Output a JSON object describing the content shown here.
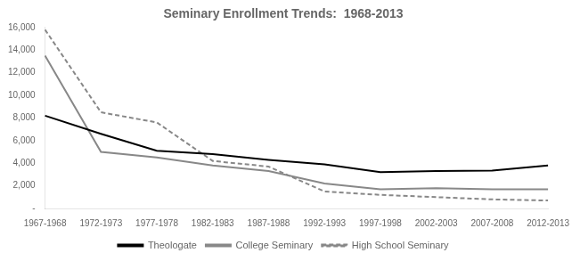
{
  "chart_data": {
    "type": "line",
    "title": "Seminary Enrollment Trends:  1968-2013",
    "categories": [
      "1967-1968",
      "1972-1973",
      "1977-1978",
      "1982-1983",
      "1987-1988",
      "1992-1993",
      "1997-1998",
      "2002-2003",
      "2007-2008",
      "2012-2013"
    ],
    "series": [
      {
        "name": "Theologate",
        "color": "#000000",
        "line_style": "solid",
        "values": [
          8200,
          6600,
          5100,
          4800,
          4300,
          3900,
          3200,
          3300,
          3350,
          3800
        ]
      },
      {
        "name": "College Seminary",
        "color": "#888888",
        "line_style": "solid",
        "values": [
          13500,
          5000,
          4500,
          3800,
          3300,
          2200,
          1700,
          1800,
          1700,
          1700
        ]
      },
      {
        "name": "High School Seminary",
        "color": "#888888",
        "line_style": "dashed",
        "values": [
          15800,
          8500,
          7600,
          4200,
          3700,
          1500,
          1200,
          1000,
          800,
          700
        ]
      }
    ],
    "ylim": [
      0,
      16000
    ],
    "yticks": [
      {
        "value": 0,
        "label": "-"
      },
      {
        "value": 2000,
        "label": "2,000"
      },
      {
        "value": 4000,
        "label": "4,000"
      },
      {
        "value": 6000,
        "label": "6,000"
      },
      {
        "value": 8000,
        "label": "8,000"
      },
      {
        "value": 10000,
        "label": "10,000"
      },
      {
        "value": 12000,
        "label": "12,000"
      },
      {
        "value": 14000,
        "label": "14,000"
      },
      {
        "value": 16000,
        "label": "16,000"
      }
    ],
    "grid": false,
    "legend": "bottom"
  }
}
